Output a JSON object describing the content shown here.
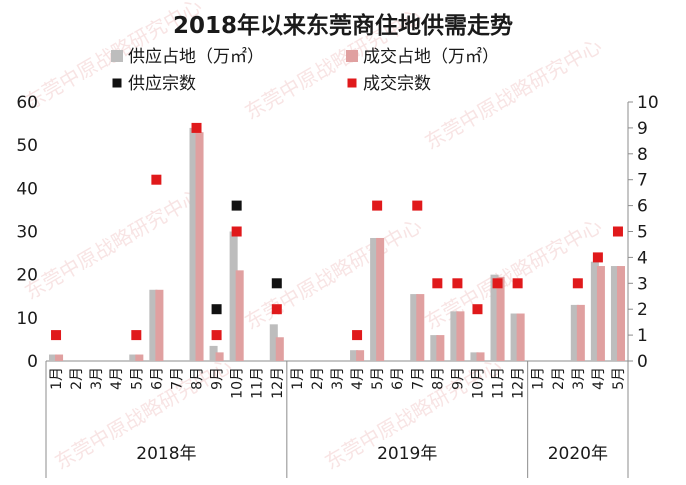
{
  "chart_data": {
    "type": "bar",
    "title": "2018年以来东莞商住地供需走势",
    "watermark": "东莞中原战略研究中心",
    "colors": {
      "supply_area": "#bdbdbd",
      "deal_area": "#e0a0a0",
      "supply_count": "#111111",
      "deal_count": "#e0191b"
    },
    "legend": [
      {
        "key": "supply_area",
        "label": "供应占地（万㎡）",
        "marker": "square"
      },
      {
        "key": "deal_area",
        "label": "成交占地（万㎡）",
        "marker": "square"
      },
      {
        "key": "supply_count",
        "label": "供应宗数",
        "marker": "small-square"
      },
      {
        "key": "deal_count",
        "label": "成交宗数",
        "marker": "small-square"
      }
    ],
    "y_left": {
      "min": 0,
      "max": 60,
      "ticks": [
        "0",
        "10",
        "20",
        "30",
        "40",
        "50",
        "60"
      ]
    },
    "y_right": {
      "min": 0,
      "max": 10,
      "ticks": [
        "0",
        "1",
        "2",
        "3",
        "4",
        "5",
        "6",
        "7",
        "8",
        "9",
        "10"
      ]
    },
    "groups": [
      {
        "label": "2018年",
        "months": [
          "1月",
          "2月",
          "3月",
          "4月",
          "5月",
          "6月",
          "7月",
          "8月",
          "9月",
          "10月",
          "11月",
          "12月"
        ]
      },
      {
        "label": "2019年",
        "months": [
          "1月",
          "2月",
          "3月",
          "4月",
          "5月",
          "6月",
          "7月",
          "8月",
          "9月",
          "10月",
          "11月",
          "12月"
        ]
      },
      {
        "label": "2020年",
        "months": [
          "1月",
          "2月",
          "3月",
          "4月",
          "5月"
        ]
      }
    ],
    "series": [
      {
        "name": "供应占地（万㎡）",
        "axis": "left",
        "values": [
          1.5,
          0,
          0,
          0,
          1.5,
          16.5,
          0,
          54,
          3.5,
          30,
          0,
          8.5,
          0,
          0,
          0,
          2.5,
          28.5,
          0,
          15.5,
          6,
          11.5,
          2,
          20,
          11,
          0,
          0,
          13,
          23,
          22
        ]
      },
      {
        "name": "成交占地（万㎡）",
        "axis": "left",
        "values": [
          1.5,
          0,
          0,
          0,
          1.5,
          16.5,
          0,
          53,
          2,
          21,
          0,
          5.5,
          0,
          0,
          0,
          2.5,
          28.5,
          0,
          15.5,
          6,
          11.5,
          2,
          19.5,
          11,
          0,
          0,
          13,
          22,
          22
        ]
      },
      {
        "name": "供应宗数",
        "axis": "right",
        "values": [
          null,
          null,
          null,
          null,
          null,
          null,
          null,
          null,
          2,
          6,
          null,
          3,
          null,
          null,
          null,
          null,
          null,
          null,
          null,
          null,
          null,
          null,
          null,
          null,
          null,
          null,
          null,
          null,
          null
        ]
      },
      {
        "name": "成交宗数",
        "axis": "right",
        "values": [
          1,
          null,
          null,
          null,
          1,
          7,
          null,
          9,
          1,
          5,
          null,
          2,
          null,
          null,
          null,
          1,
          6,
          null,
          6,
          3,
          3,
          2,
          3,
          3,
          null,
          null,
          3,
          4,
          5
        ]
      }
    ]
  }
}
